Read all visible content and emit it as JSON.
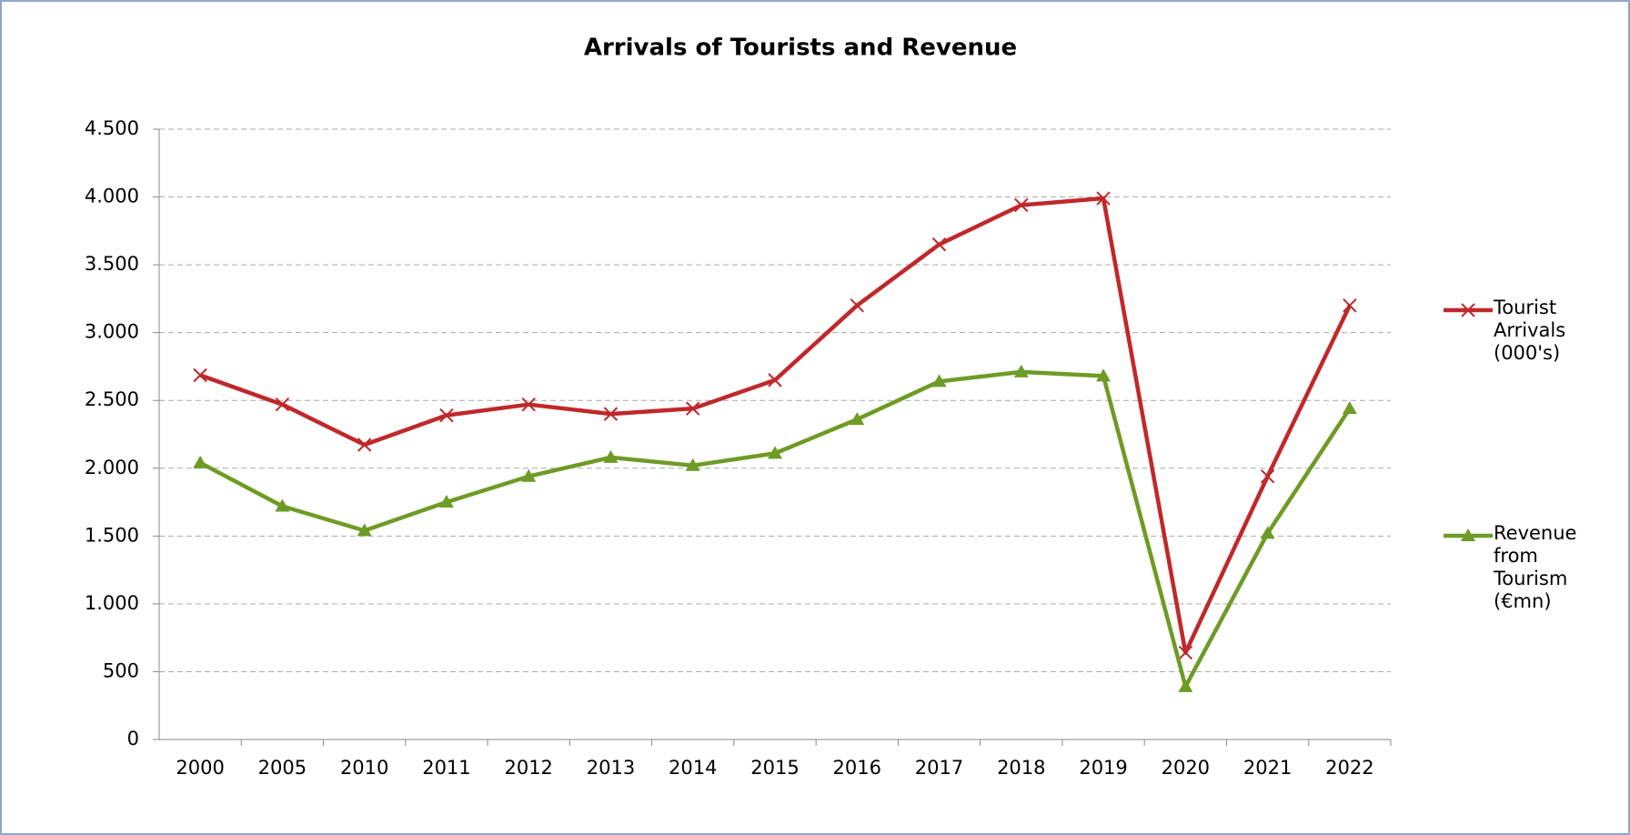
{
  "chart_data": {
    "type": "line",
    "title": "Arrivals of Tourists and Revenue",
    "categories": [
      "2000",
      "2005",
      "2010",
      "2011",
      "2012",
      "2013",
      "2014",
      "2015",
      "2016",
      "2017",
      "2018",
      "2019",
      "2020",
      "2021",
      "2022"
    ],
    "series": [
      {
        "name": "Tourist Arrivals (000's)",
        "color": "#c0282a",
        "marker": "x",
        "values": [
          2686,
          2470,
          2173,
          2390,
          2470,
          2400,
          2440,
          2650,
          3200,
          3650,
          3940,
          3990,
          640,
          1940,
          3200
        ]
      },
      {
        "name": "Revenue from Tourism (€mn)",
        "color": "#6e9b25",
        "marker": "triangle",
        "values": [
          2040,
          1720,
          1540,
          1750,
          1940,
          2080,
          2020,
          2110,
          2360,
          2640,
          2710,
          2680,
          390,
          1520,
          2440
        ]
      }
    ],
    "ylim": [
      0,
      4500
    ],
    "yticks": [
      0,
      500,
      {
        "value": 1000,
        "label": "1.000"
      },
      {
        "value": 1500,
        "label": "1.500"
      },
      {
        "value": 2000,
        "label": "2.000"
      },
      {
        "value": 2500,
        "label": "2.500"
      },
      {
        "value": 3000,
        "label": "3.000"
      },
      {
        "value": 3500,
        "label": "3.500"
      },
      {
        "value": 4000,
        "label": "4.000"
      },
      {
        "value": 4500,
        "label": "4.500"
      }
    ],
    "grid": true,
    "legend": "right"
  }
}
